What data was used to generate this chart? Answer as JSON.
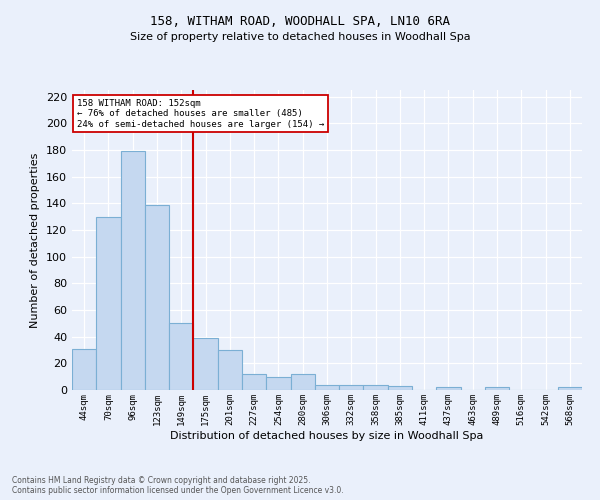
{
  "title1": "158, WITHAM ROAD, WOODHALL SPA, LN10 6RA",
  "title2": "Size of property relative to detached houses in Woodhall Spa",
  "xlabel": "Distribution of detached houses by size in Woodhall Spa",
  "ylabel": "Number of detached properties",
  "categories": [
    "44sqm",
    "70sqm",
    "96sqm",
    "123sqm",
    "149sqm",
    "175sqm",
    "201sqm",
    "227sqm",
    "254sqm",
    "280sqm",
    "306sqm",
    "332sqm",
    "358sqm",
    "385sqm",
    "411sqm",
    "437sqm",
    "463sqm",
    "489sqm",
    "516sqm",
    "542sqm",
    "568sqm"
  ],
  "values": [
    31,
    130,
    179,
    139,
    50,
    39,
    30,
    12,
    10,
    12,
    4,
    4,
    4,
    3,
    0,
    2,
    0,
    2,
    0,
    0,
    2
  ],
  "bar_color": "#c5d8f0",
  "bar_edge_color": "#7bafd4",
  "annotation_line1": "158 WITHAM ROAD: 152sqm",
  "annotation_line2": "← 76% of detached houses are smaller (485)",
  "annotation_line3": "24% of semi-detached houses are larger (154) →",
  "vline_color": "#cc0000",
  "annotation_box_color": "#ffffff",
  "annotation_box_edge": "#cc0000",
  "background_color": "#eaf0fb",
  "grid_color": "#d0d8e8",
  "ylim": [
    0,
    225
  ],
  "yticks": [
    0,
    20,
    40,
    60,
    80,
    100,
    120,
    140,
    160,
    180,
    200,
    220
  ],
  "footer1": "Contains HM Land Registry data © Crown copyright and database right 2025.",
  "footer2": "Contains public sector information licensed under the Open Government Licence v3.0."
}
